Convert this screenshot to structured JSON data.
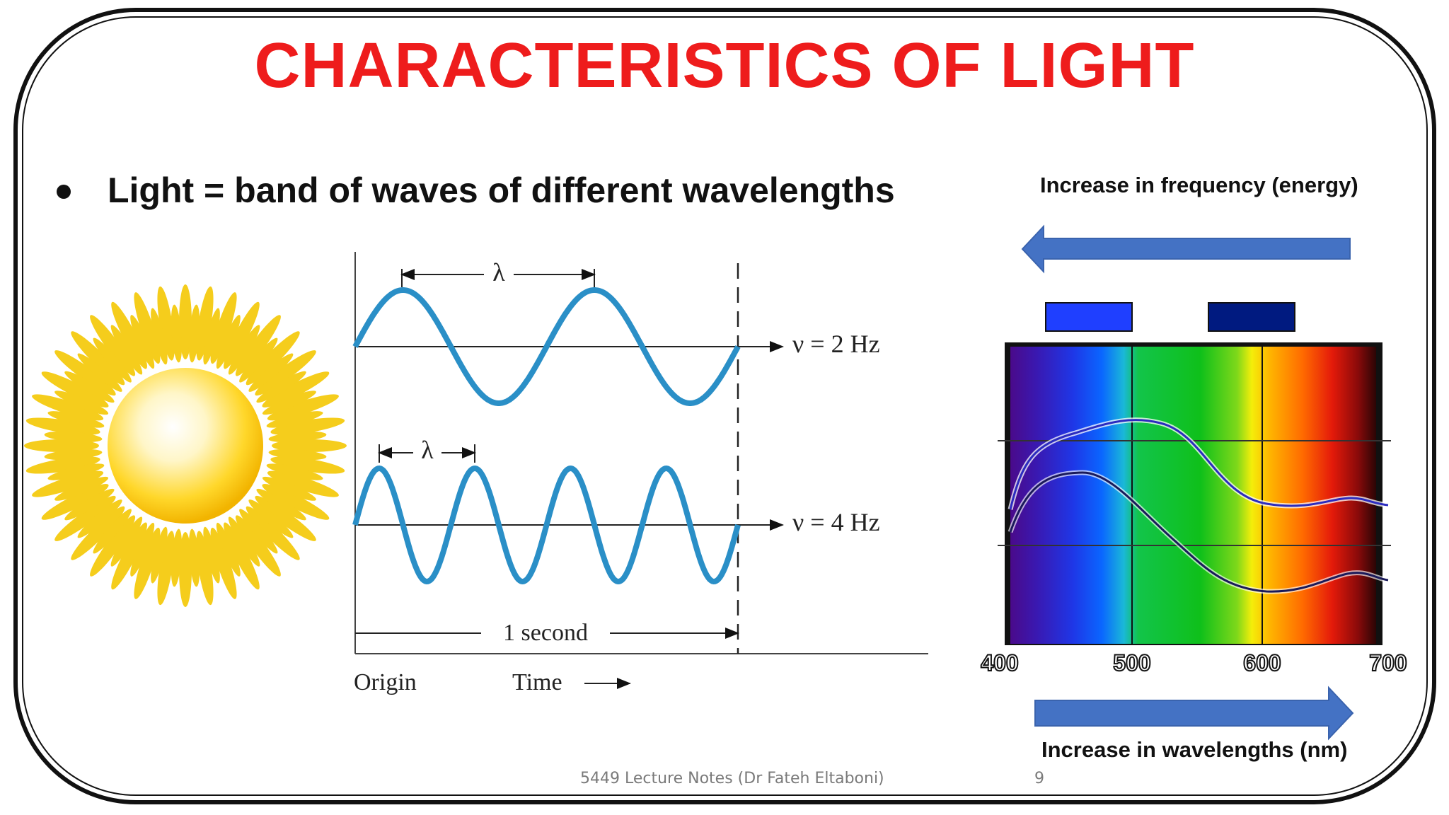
{
  "slide": {
    "title": "CHARACTERISTICS OF LIGHT",
    "bullet": "Light = band of waves of different wavelengths",
    "footer_note": "5449 Lecture Notes  (Dr Fateh Eltaboni)",
    "page_number": "9"
  },
  "wave_figure": {
    "lambda_symbol": "λ",
    "top_wave_label": "ν = 2 Hz",
    "bottom_wave_label": "ν = 4 Hz",
    "duration_label": "1 second",
    "origin_label": "Origin",
    "time_label": "Time",
    "top_wave_frequency_hz": 2,
    "bottom_wave_frequency_hz": 4,
    "duration_s": 1
  },
  "spectrum_figure": {
    "top_caption": "Increase in frequency (energy)",
    "bottom_caption": "Increase in wavelengths (nm)",
    "axis_ticks": [
      "400",
      "500",
      "600",
      "700"
    ],
    "colors": {
      "arrow": "#4472c4",
      "swatch_left": "#1f3fff",
      "swatch_right": "#001a80",
      "curve": "#2b2bbf"
    }
  },
  "colors": {
    "title": "#ee1c1c",
    "wave": "#2a8fc7",
    "sun_rays": "#f5cd1c"
  }
}
